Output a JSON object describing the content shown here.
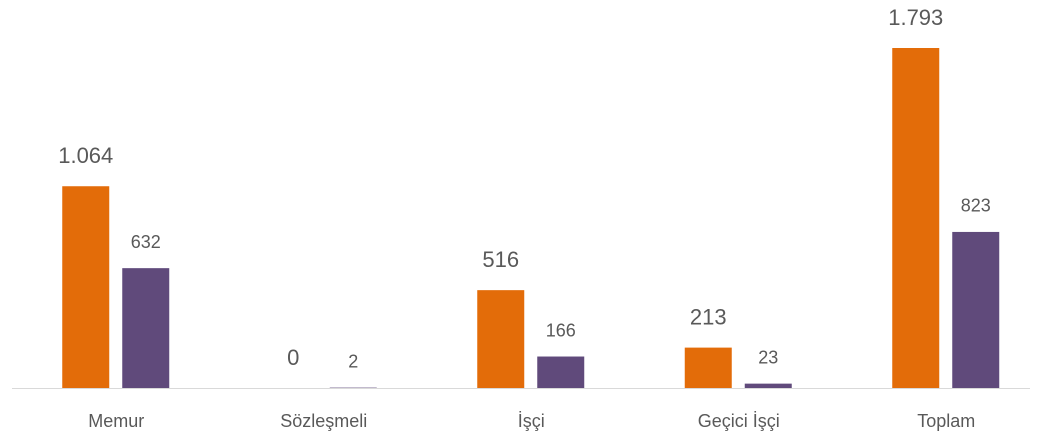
{
  "chart_data": {
    "type": "bar",
    "categories": [
      "Memur",
      "Sözleşmeli",
      "İşçi",
      "Geçici İşçi",
      "Toplam"
    ],
    "series": [
      {
        "color": "#e36c09",
        "values": [
          1064,
          0,
          516,
          213,
          1793
        ],
        "value_labels": [
          "1.064",
          "0",
          "516",
          "213",
          "1.793"
        ]
      },
      {
        "color": "#604a7b",
        "values": [
          632,
          2,
          166,
          23,
          823
        ]
      }
    ]
  }
}
